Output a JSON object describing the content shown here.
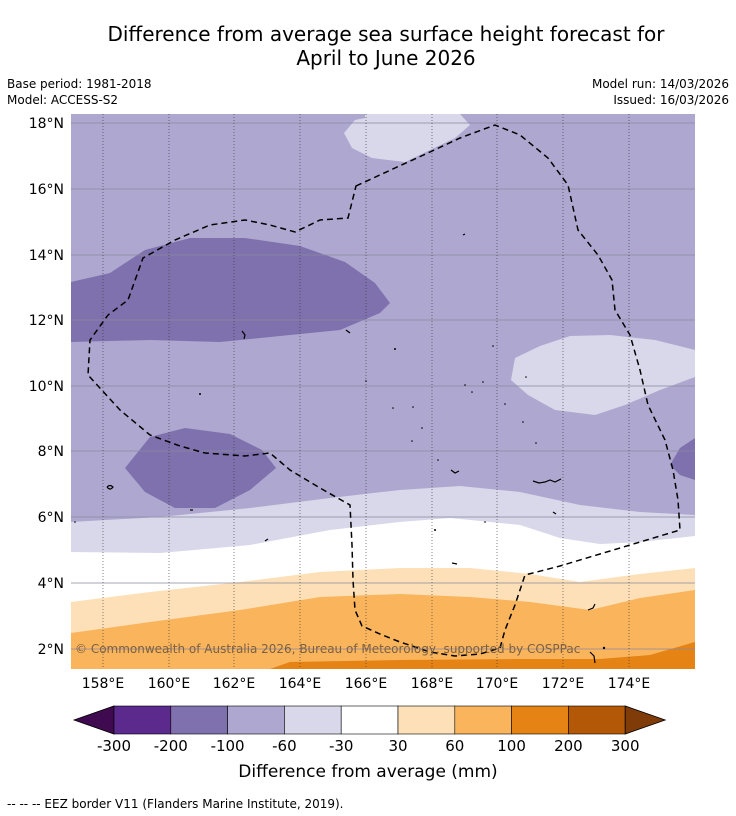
{
  "title_line1": "Difference from average sea surface height forecast for",
  "title_line2": "April to June 2026",
  "base_period": "Base period: 1981-2018",
  "model": "Model: ACCESS-S2",
  "model_run": "Model run: 14/03/2026",
  "issued": "Issued: 16/03/2026",
  "lat_labels": [
    "18°N",
    "16°N",
    "14°N",
    "12°N",
    "10°N",
    "8°N",
    "6°N",
    "4°N",
    "2°N"
  ],
  "lon_labels": [
    "158°E",
    "160°E",
    "162°E",
    "164°E",
    "166°E",
    "168°E",
    "170°E",
    "172°E",
    "174°E"
  ],
  "copyright": "© Commonwealth of Australia 2026, Bureau of Meteorology, supported by COSPPac",
  "colorbar": {
    "ticks": [
      "-300",
      "-200",
      "-100",
      "-60",
      "-30",
      "30",
      "60",
      "100",
      "200",
      "300"
    ],
    "colors": [
      "#3f0a4f",
      "#5b2a8c",
      "#7f71ad",
      "#aea7cf",
      "#d8d8ea",
      "#ffffff",
      "#fde0b7",
      "#f9b45c",
      "#e58314",
      "#b35806",
      "#7f3b08"
    ],
    "label": "Difference from average (mm)"
  },
  "footer": "--  --  -- EEZ border V11 (Flanders Marine Institute, 2019)."
}
